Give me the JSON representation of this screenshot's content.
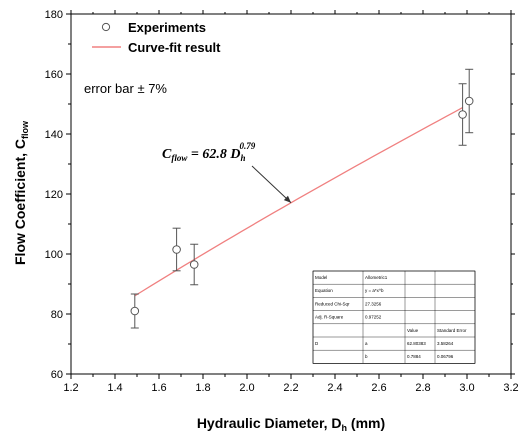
{
  "chart_data": {
    "type": "scatter",
    "xlabel": "Hydraulic Diameter, D",
    "xlabel_sub": "h",
    "xlabel_unit": " (mm)",
    "ylabel": "Flow Coefficient, C",
    "ylabel_sub": "flow",
    "xlim": [
      1.2,
      3.2
    ],
    "ylim": [
      60,
      180
    ],
    "xticks": [
      1.2,
      1.4,
      1.6,
      1.8,
      2.0,
      2.2,
      2.4,
      2.6,
      2.8,
      3.0,
      3.2
    ],
    "xtick_labels": [
      "1.2",
      "1.4",
      "1.6",
      "1.8",
      "2.0",
      "2.2",
      "2.4",
      "2.6",
      "2.8",
      "3.0",
      "3.2"
    ],
    "yticks": [
      60,
      80,
      100,
      120,
      140,
      160,
      180
    ],
    "ytick_labels": [
      "60",
      "80",
      "100",
      "120",
      "140",
      "160",
      "180"
    ],
    "grid": false,
    "legend_position": "top-left",
    "colors": {
      "experiments": "#555555",
      "fit": "#f08080",
      "axis": "#000000"
    },
    "series": [
      {
        "name": "Experiments",
        "marker": "open-circle",
        "x": [
          1.49,
          1.68,
          1.76,
          2.98,
          3.01
        ],
        "y": [
          81.0,
          101.5,
          96.5,
          146.5,
          151.0
        ],
        "error_percent": 7
      },
      {
        "name": "Curve-fit result",
        "line": true,
        "x_range": [
          1.49,
          2.98
        ],
        "coefficient": 62.8,
        "exponent": 0.79
      }
    ],
    "annotations": {
      "error_bar_note": "error bar ± 7%",
      "equation_lhs": "C",
      "equation_lhs_sub": "flow",
      "equation_mid": " = 62.8  D",
      "equation_sub": "h",
      "equation_sup": "0.79",
      "arrow_target_x": 2.2
    },
    "fit_table": {
      "rows": [
        [
          "Model",
          "Allometric1",
          "",
          ""
        ],
        [
          "Equation",
          "y = a*x^b",
          "",
          ""
        ],
        [
          "Reduced Chi-Sqr",
          "27.3256",
          "",
          ""
        ],
        [
          "Adj. R-Square",
          "0.97252",
          "",
          ""
        ],
        [
          "",
          "",
          "Value",
          "Standard Error"
        ],
        [
          "D",
          "a",
          "62.80383",
          "3.58264"
        ],
        [
          "",
          "b",
          "0.7884",
          "0.06796"
        ]
      ]
    }
  }
}
